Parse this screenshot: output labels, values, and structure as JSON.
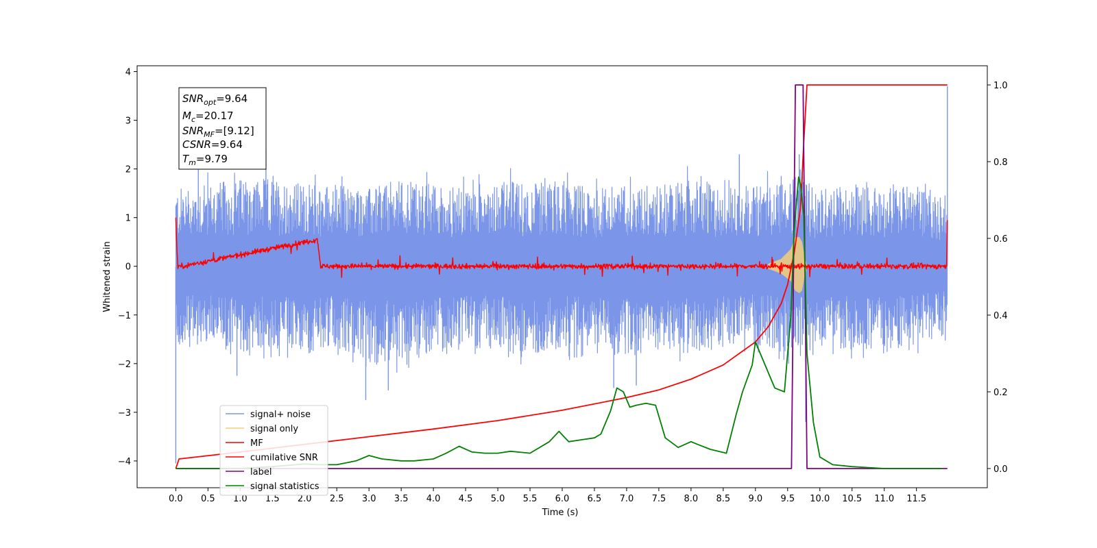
{
  "chart_data": {
    "type": "line",
    "xlabel": "Time (s)",
    "ylabel": "Whitened strain",
    "xlim": [
      -0.6,
      12.6
    ],
    "ylim": [
      -4.55,
      4.12
    ],
    "y2lim": [
      -0.05,
      1.05
    ],
    "xticks": [
      0.0,
      0.5,
      1.0,
      1.5,
      2.0,
      2.5,
      3.0,
      3.5,
      4.0,
      4.5,
      5.0,
      5.5,
      6.0,
      6.5,
      7.0,
      7.5,
      8.0,
      8.5,
      9.0,
      9.5,
      10.0,
      10.5,
      11.0,
      11.5
    ],
    "xtick_labels": [
      "0.0",
      "0.5",
      "1.0",
      "1.5",
      "2.0",
      "2.5",
      "3.0",
      "3.5",
      "4.0",
      "4.5",
      "5.0",
      "5.5",
      "6.0",
      "6.5",
      "7.0",
      "7.5",
      "8.0",
      "8.5",
      "9.0",
      "9.5",
      "10.0",
      "10.5",
      "11.0",
      "11.5"
    ],
    "yticks": [
      4,
      3,
      2,
      1,
      0,
      -1,
      -2,
      -3,
      -4
    ],
    "ytick_labels": [
      "4",
      "3",
      "2",
      "1",
      "0",
      "−1",
      "−2",
      "−3",
      "−4"
    ],
    "y2ticks": [
      1.0,
      0.8,
      0.6,
      0.4,
      0.2,
      0.0
    ],
    "y2tick_labels": [
      "1.0",
      "0.8",
      "0.6",
      "0.4",
      "0.2",
      "0.0"
    ],
    "grid": false,
    "legend_position": "lower-left",
    "annotation": [
      {
        "base": "SNR",
        "sub": "opt",
        "value": "=9.64"
      },
      {
        "base": "M",
        "sub": "c",
        "value": "=20.17"
      },
      {
        "base": "SNR",
        "sub": "MF",
        "value": "=[9.12]"
      },
      {
        "base": "CSNR",
        "sub": "",
        "value": "=9.64"
      },
      {
        "base": "T",
        "sub": "m",
        "value": "=9.79"
      }
    ],
    "series": [
      {
        "name": "signal+ noise",
        "axis": "left",
        "color": "#7b96e8",
        "noise_amplitude": [
          -1.7,
          1.7
        ],
        "x": [
          0.0,
          0.5,
          1.0,
          1.5,
          2.0,
          2.5,
          3.0,
          3.5,
          4.0,
          4.5,
          5.0,
          5.5,
          6.0,
          6.5,
          7.0,
          7.5,
          8.0,
          8.5,
          9.0,
          9.5,
          10.0,
          10.5,
          11.0,
          11.5,
          11.98
        ],
        "upper": [
          1.6,
          1.7,
          1.8,
          1.8,
          1.7,
          1.7,
          1.6,
          1.8,
          1.7,
          1.6,
          1.8,
          1.7,
          1.8,
          1.6,
          1.7,
          1.7,
          1.8,
          1.6,
          1.7,
          1.9,
          1.6,
          1.7,
          1.6,
          1.7,
          1.4
        ],
        "lower": [
          -1.7,
          -1.6,
          -1.8,
          -1.7,
          -1.8,
          -1.7,
          -2.0,
          -1.9,
          -1.8,
          -1.7,
          -1.7,
          -1.8,
          -1.7,
          -1.6,
          -1.9,
          -1.7,
          -1.8,
          -1.7,
          -1.6,
          -1.8,
          -1.7,
          -1.7,
          -1.8,
          -1.6,
          -1.4
        ],
        "spikes": [
          {
            "x": 0.0,
            "y": -4.05
          },
          {
            "x": 0.35,
            "y": 2.3
          },
          {
            "x": 1.4,
            "y": 2.4
          },
          {
            "x": 0.95,
            "y": -2.25
          },
          {
            "x": 2.95,
            "y": -2.75
          },
          {
            "x": 3.3,
            "y": -2.55
          },
          {
            "x": 6.8,
            "y": -2.5
          },
          {
            "x": 7.15,
            "y": -2.45
          },
          {
            "x": 8.75,
            "y": 2.3
          },
          {
            "x": 9.68,
            "y": 2.3
          },
          {
            "x": 9.78,
            "y": -3.2
          },
          {
            "x": 11.98,
            "y": 3.7
          }
        ]
      },
      {
        "name": "signal only",
        "axis": "left",
        "color": "#f5cf78",
        "x": [
          9.2,
          9.4,
          9.55,
          9.62,
          9.68,
          9.72,
          9.76,
          9.8
        ],
        "upper": [
          0.05,
          0.15,
          0.35,
          0.6,
          0.6,
          0.5,
          0.2,
          0.0
        ],
        "lower": [
          -0.05,
          -0.15,
          -0.3,
          -0.5,
          -0.55,
          -0.5,
          -0.2,
          0.0
        ]
      },
      {
        "name": "MF",
        "axis": "left",
        "color": "#ff0000",
        "noise_amplitude": [
          -0.15,
          0.15
        ],
        "x": [
          0.0,
          0.03,
          0.1,
          2.2,
          2.25,
          3.0,
          6.0,
          9.0,
          11.97,
          11.98
        ],
        "y": [
          1.0,
          0.0,
          0.0,
          0.55,
          0.0,
          0.0,
          0.0,
          0.0,
          0.0,
          0.95
        ]
      },
      {
        "name": "cumilative SNR",
        "axis": "right",
        "color": "#ff0000",
        "x": [
          0.0,
          0.05,
          1.0,
          2.0,
          3.0,
          4.0,
          5.0,
          6.0,
          7.0,
          7.5,
          8.0,
          8.5,
          9.0,
          9.2,
          9.4,
          9.5,
          9.6,
          9.7,
          9.75,
          9.8,
          11.98
        ],
        "y": [
          0.0,
          0.025,
          0.043,
          0.063,
          0.083,
          0.103,
          0.125,
          0.152,
          0.185,
          0.205,
          0.233,
          0.27,
          0.33,
          0.37,
          0.43,
          0.48,
          0.56,
          0.68,
          0.85,
          1.0,
          1.0
        ]
      },
      {
        "name": "label",
        "axis": "right",
        "color": "#800080",
        "x": [
          0.0,
          9.56,
          9.62,
          9.74,
          9.8,
          10.0,
          11.98
        ],
        "y": [
          0.0,
          0.0,
          1.0,
          1.0,
          0.0,
          0.0,
          0.0
        ]
      },
      {
        "name": "signal statistics",
        "axis": "right",
        "color": "#008000",
        "x": [
          0.0,
          0.5,
          1.0,
          1.5,
          2.0,
          2.2,
          2.5,
          2.8,
          3.0,
          3.2,
          3.5,
          3.7,
          4.0,
          4.2,
          4.4,
          4.6,
          4.8,
          5.0,
          5.2,
          5.5,
          5.8,
          5.95,
          6.1,
          6.3,
          6.5,
          6.6,
          6.75,
          6.85,
          6.95,
          7.05,
          7.15,
          7.3,
          7.45,
          7.6,
          7.8,
          8.0,
          8.1,
          8.3,
          8.55,
          8.7,
          8.8,
          8.95,
          9.0,
          9.1,
          9.3,
          9.45,
          9.55,
          9.6,
          9.67,
          9.7,
          9.75,
          9.8,
          9.9,
          10.0,
          10.2,
          10.5,
          11.0,
          11.5,
          11.9
        ],
        "y": [
          0.0,
          0.0,
          0.0,
          0.005,
          0.012,
          0.01,
          0.01,
          0.02,
          0.034,
          0.025,
          0.02,
          0.02,
          0.025,
          0.04,
          0.058,
          0.043,
          0.04,
          0.04,
          0.045,
          0.04,
          0.07,
          0.097,
          0.07,
          0.075,
          0.08,
          0.09,
          0.15,
          0.21,
          0.2,
          0.16,
          0.165,
          0.17,
          0.165,
          0.08,
          0.055,
          0.07,
          0.063,
          0.05,
          0.04,
          0.14,
          0.2,
          0.27,
          0.33,
          0.29,
          0.21,
          0.2,
          0.4,
          0.62,
          0.76,
          0.74,
          0.66,
          0.3,
          0.12,
          0.03,
          0.01,
          0.005,
          0.0,
          0.0,
          0.0
        ]
      }
    ]
  }
}
